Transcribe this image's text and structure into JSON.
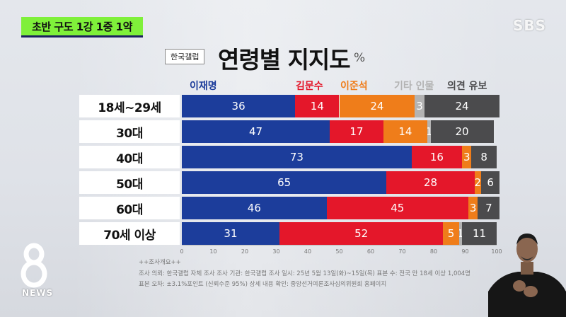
{
  "headline": "초반 구도 1강 1중 1약",
  "broadcaster": "SBS",
  "news_brand": "NEWS",
  "colors": {
    "lee_jaemyung": "#1c3d9b",
    "kim_moonsoo": "#e4172a",
    "lee_junseok": "#ef7d1a",
    "other": "#b3b3b3",
    "undecided": "#4b4b4d",
    "headline_bg": "#7ff03a"
  },
  "chart_data": {
    "type": "bar",
    "orientation": "horizontal",
    "stacked": true,
    "source_badge": "한국갤럽",
    "title": "연령별 지지도",
    "unit": "%",
    "categories": [
      "18세~29세",
      "30대",
      "40대",
      "50대",
      "60대",
      "70세 이상"
    ],
    "series": [
      {
        "name": "이재명",
        "color": "#1c3d9b",
        "values": [
          36,
          47,
          73,
          65,
          46,
          31
        ],
        "labels": [
          "36",
          "47",
          "73",
          "65",
          "46",
          "31"
        ]
      },
      {
        "name": "김문수",
        "color": "#e4172a",
        "values": [
          14,
          17,
          16,
          28,
          45,
          52
        ],
        "labels": [
          "14",
          "17",
          "16",
          "28",
          "45",
          "52"
        ]
      },
      {
        "name": "이준석",
        "color": "#ef7d1a",
        "values": [
          24,
          14,
          3,
          2,
          3,
          5
        ],
        "labels": [
          "24",
          "14",
          "3",
          "2",
          "3",
          "5"
        ]
      },
      {
        "name": "기타 인물",
        "color": "#b3b3b3",
        "values": [
          3,
          1,
          0,
          0,
          0,
          1
        ],
        "labels": [
          "3",
          "1",
          "",
          "",
          "",
          "1"
        ]
      },
      {
        "name": "의견 유보",
        "color": "#4b4b4d",
        "values": [
          24,
          20,
          8,
          6,
          7,
          11
        ],
        "labels": [
          "24",
          "20",
          "8",
          "6",
          "7",
          "11"
        ]
      }
    ],
    "xlim": [
      0,
      100
    ],
    "xticks": [
      "0",
      "10",
      "20",
      "30",
      "40",
      "50",
      "60",
      "70",
      "80",
      "90",
      "100"
    ],
    "grid": false
  },
  "notes": {
    "header": "++조사개요++",
    "line1": "조사 의뢰: 한국갤럽 자체 조사   조사 기관: 한국갤럽   조사 일시: 25년 5월 13일(화)~15일(목)   표본 수: 전국 만 18세 이상 1,004명",
    "line2": "표본 오차: ±3.1%포인트 (신뢰수준 95%)   상세 내용 확인: 중앙선거여론조사심의위원회 홈페이지"
  }
}
